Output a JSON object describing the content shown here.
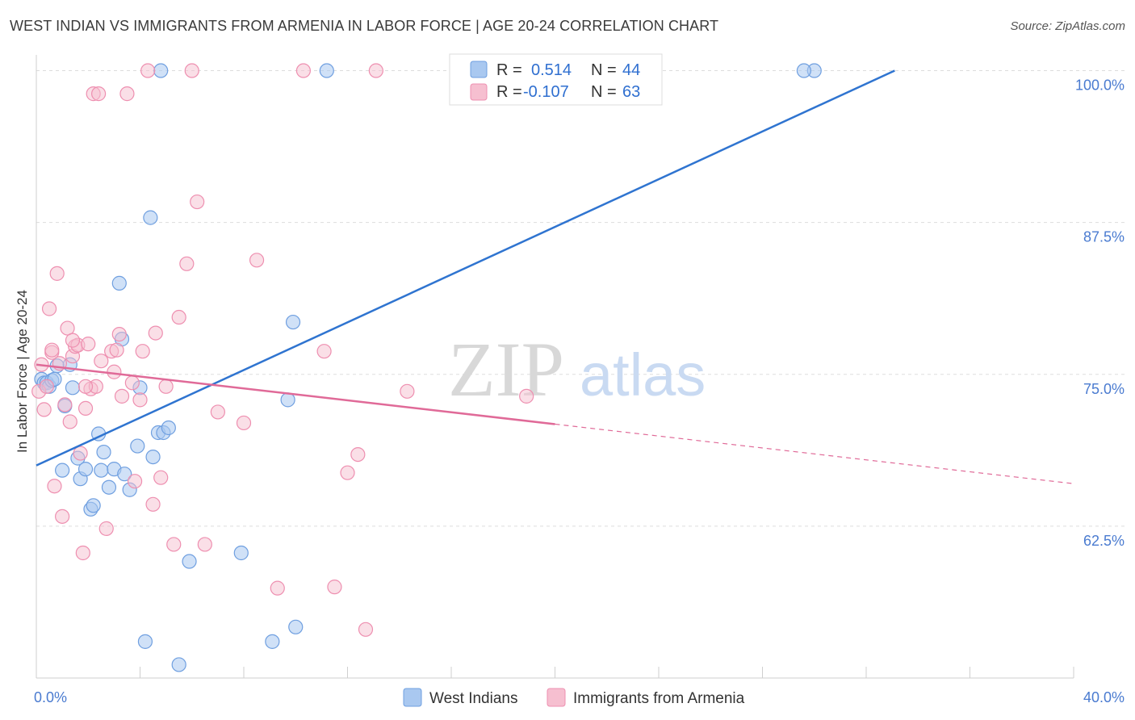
{
  "header": {
    "title": "WEST INDIAN VS IMMIGRANTS FROM ARMENIA IN LABOR FORCE | AGE 20-24 CORRELATION CHART",
    "source": "Source: ZipAtlas.com"
  },
  "watermark": {
    "zip": "ZIP",
    "atlas": "atlas"
  },
  "colors": {
    "blue_fill": "#a9c8f0",
    "blue_stroke": "#6f9fe0",
    "blue_line": "#2f74d0",
    "pink_fill": "#f6bfd0",
    "pink_stroke": "#ee8fb0",
    "pink_line": "#e06a98",
    "grid": "#dddddd",
    "tick_text": "#4a7bd0"
  },
  "chart_data": {
    "type": "scatter",
    "title": "WEST INDIAN VS IMMIGRANTS FROM ARMENIA IN LABOR FORCE | AGE 20-24 CORRELATION CHART",
    "xlabel": "",
    "ylabel": "In Labor Force | Age 20-24",
    "xlim": [
      0,
      40
    ],
    "ylim": [
      50,
      100.5
    ],
    "x_tick_labels": [
      "0.0%",
      "40.0%"
    ],
    "y_ticks": [
      62.5,
      75.0,
      87.5,
      100.0
    ],
    "y_tick_labels": [
      "62.5%",
      "75.0%",
      "87.5%",
      "100.0%"
    ],
    "legend": {
      "position": "top-center",
      "entries": [
        {
          "series": "West Indians",
          "r_label": "R =",
          "r_value": "0.514",
          "n_label": "N =",
          "n_value": "44"
        },
        {
          "series": "Immigrants from Armenia",
          "r_label": "R =",
          "r_value": "-0.107",
          "n_label": "N =",
          "n_value": "63"
        }
      ]
    },
    "series": [
      {
        "name": "West Indians",
        "color": "#a9c8f0",
        "trend": {
          "x0": 0,
          "y0": 67.5,
          "x1": 33.1,
          "y1": 100.0,
          "dashed_to": null
        },
        "points": [
          [
            0.2,
            74.6
          ],
          [
            0.3,
            74.3
          ],
          [
            0.4,
            74.3
          ],
          [
            0.5,
            74.0
          ],
          [
            0.6,
            74.5
          ],
          [
            0.7,
            74.6
          ],
          [
            0.8,
            75.7
          ],
          [
            1.0,
            67.1
          ],
          [
            1.1,
            72.4
          ],
          [
            1.3,
            75.8
          ],
          [
            1.4,
            73.9
          ],
          [
            1.6,
            68.1
          ],
          [
            1.7,
            66.4
          ],
          [
            1.9,
            67.2
          ],
          [
            2.1,
            63.9
          ],
          [
            2.2,
            64.2
          ],
          [
            2.4,
            70.1
          ],
          [
            2.5,
            67.1
          ],
          [
            2.6,
            68.6
          ],
          [
            2.8,
            65.7
          ],
          [
            3.0,
            67.2
          ],
          [
            3.2,
            82.5
          ],
          [
            3.3,
            77.9
          ],
          [
            3.4,
            66.8
          ],
          [
            3.6,
            65.5
          ],
          [
            3.9,
            69.1
          ],
          [
            4.0,
            73.9
          ],
          [
            4.4,
            87.9
          ],
          [
            4.5,
            68.2
          ],
          [
            4.7,
            70.2
          ],
          [
            4.8,
            100.0
          ],
          [
            4.9,
            70.2
          ],
          [
            5.1,
            70.6
          ],
          [
            5.5,
            51.1
          ],
          [
            5.9,
            59.6
          ],
          [
            4.2,
            53.0
          ],
          [
            7.9,
            60.3
          ],
          [
            9.1,
            53.0
          ],
          [
            9.9,
            79.3
          ],
          [
            10.0,
            54.2
          ],
          [
            11.2,
            100.0
          ],
          [
            30.0,
            100.0
          ],
          [
            29.6,
            100.0
          ],
          [
            9.7,
            72.9
          ]
        ]
      },
      {
        "name": "Immigrants from Armenia",
        "color": "#f6bfd0",
        "trend": {
          "x0": 0,
          "y0": 75.8,
          "x1": 20.0,
          "y1": 70.9,
          "dashed_to": {
            "x": 40.0,
            "y": 66.0
          }
        },
        "points": [
          [
            0.1,
            73.6
          ],
          [
            0.2,
            75.8
          ],
          [
            0.3,
            72.1
          ],
          [
            0.4,
            74.0
          ],
          [
            0.5,
            80.4
          ],
          [
            0.6,
            76.8
          ],
          [
            0.7,
            65.8
          ],
          [
            0.8,
            83.3
          ],
          [
            0.9,
            75.9
          ],
          [
            1.0,
            63.3
          ],
          [
            1.1,
            72.5
          ],
          [
            1.2,
            78.8
          ],
          [
            1.3,
            71.1
          ],
          [
            1.4,
            76.5
          ],
          [
            1.5,
            77.3
          ],
          [
            1.6,
            77.4
          ],
          [
            1.7,
            68.5
          ],
          [
            1.8,
            60.3
          ],
          [
            1.9,
            72.2
          ],
          [
            1.4,
            77.8
          ],
          [
            2.0,
            77.5
          ],
          [
            2.1,
            73.8
          ],
          [
            2.2,
            98.1
          ],
          [
            2.3,
            74.0
          ],
          [
            2.5,
            76.1
          ],
          [
            2.7,
            62.3
          ],
          [
            2.9,
            76.9
          ],
          [
            3.0,
            75.2
          ],
          [
            3.2,
            78.3
          ],
          [
            3.3,
            73.2
          ],
          [
            3.5,
            98.1
          ],
          [
            3.7,
            74.3
          ],
          [
            3.8,
            66.2
          ],
          [
            4.0,
            72.9
          ],
          [
            4.1,
            76.9
          ],
          [
            4.3,
            100.0
          ],
          [
            4.5,
            64.3
          ],
          [
            4.6,
            78.4
          ],
          [
            4.8,
            66.5
          ],
          [
            5.0,
            74.0
          ],
          [
            5.3,
            61.0
          ],
          [
            5.5,
            79.7
          ],
          [
            5.8,
            84.1
          ],
          [
            6.0,
            100.0
          ],
          [
            6.2,
            89.2
          ],
          [
            6.5,
            61.0
          ],
          [
            7.0,
            71.9
          ],
          [
            8.0,
            71.0
          ],
          [
            8.5,
            84.4
          ],
          [
            9.3,
            57.4
          ],
          [
            10.3,
            100.0
          ],
          [
            11.1,
            76.9
          ],
          [
            11.5,
            57.5
          ],
          [
            12.0,
            66.9
          ],
          [
            12.4,
            68.4
          ],
          [
            12.7,
            54.0
          ],
          [
            13.1,
            100.0
          ],
          [
            14.3,
            73.6
          ],
          [
            18.9,
            73.2
          ],
          [
            2.4,
            98.1
          ],
          [
            1.9,
            74.0
          ],
          [
            3.1,
            77.0
          ],
          [
            0.6,
            77.0
          ]
        ]
      }
    ]
  }
}
